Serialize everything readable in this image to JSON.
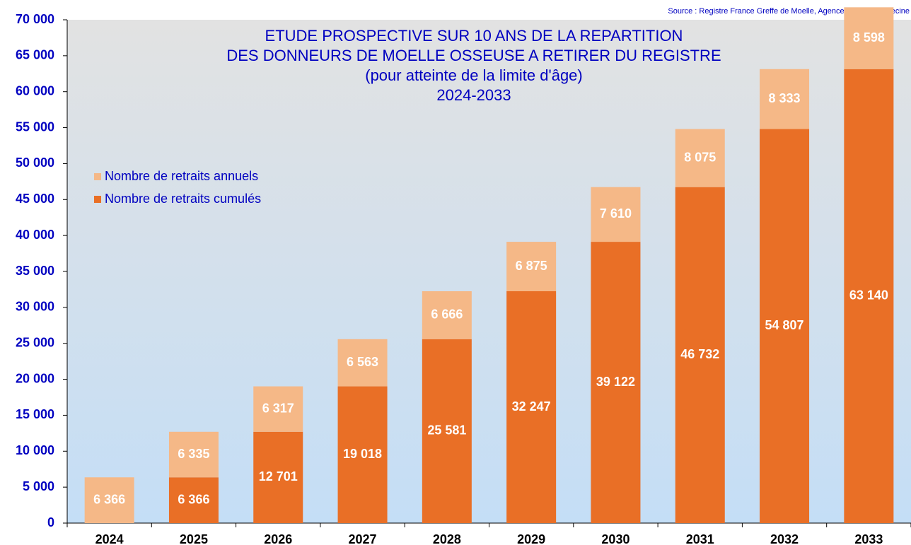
{
  "chart_data": {
    "type": "stacked-bar",
    "source": "Source : Registre France Greffe de Moelle, Agence de la biomédecine",
    "title": [
      "ETUDE PROSPECTIVE SUR 10 ANS DE LA REPARTITION",
      "DES DONNEURS DE MOELLE OSSEUSE A RETIRER DU REGISTRE",
      "(pour atteinte de la limite d'âge)",
      "2024-2033"
    ],
    "categories": [
      "2024",
      "2025",
      "2026",
      "2027",
      "2028",
      "2029",
      "2030",
      "2031",
      "2032",
      "2033"
    ],
    "series": [
      {
        "name": "Nombre de retraits cumulés",
        "color": "#e96f26",
        "values": [
          null,
          6366,
          12701,
          19018,
          25581,
          32247,
          39122,
          46732,
          54807,
          63140
        ],
        "value_labels": [
          null,
          "6 366",
          "12 701",
          "19 018",
          "25 581",
          "32 247",
          "39 122",
          "46 732",
          "54 807",
          "63 140"
        ]
      },
      {
        "name": "Nombre de retraits annuels",
        "color": "#f5b887",
        "values": [
          6366,
          6335,
          6317,
          6563,
          6666,
          6875,
          7610,
          8075,
          8333,
          8598
        ],
        "value_labels": [
          "6 366",
          "6 335",
          "6 317",
          "6 563",
          "6 666",
          "6 875",
          "7 610",
          "8 075",
          "8 333",
          "8 598"
        ]
      }
    ],
    "ylim": [
      0,
      70000
    ],
    "yticks": [
      {
        "value": 0,
        "label": "0"
      },
      {
        "value": 5000,
        "label": "5 000"
      },
      {
        "value": 10000,
        "label": "10 000"
      },
      {
        "value": 15000,
        "label": "15 000"
      },
      {
        "value": 20000,
        "label": "20 000"
      },
      {
        "value": 25000,
        "label": "25 000"
      },
      {
        "value": 30000,
        "label": "30 000"
      },
      {
        "value": 35000,
        "label": "35 000"
      },
      {
        "value": 40000,
        "label": "40 000"
      },
      {
        "value": 45000,
        "label": "45 000"
      },
      {
        "value": 50000,
        "label": "50 000"
      },
      {
        "value": 55000,
        "label": "55 000"
      },
      {
        "value": 60000,
        "label": "60 000"
      },
      {
        "value": 65000,
        "label": "65 000"
      },
      {
        "value": 70000,
        "label": "70 000"
      }
    ],
    "legend": "upper-left",
    "grid": false
  }
}
